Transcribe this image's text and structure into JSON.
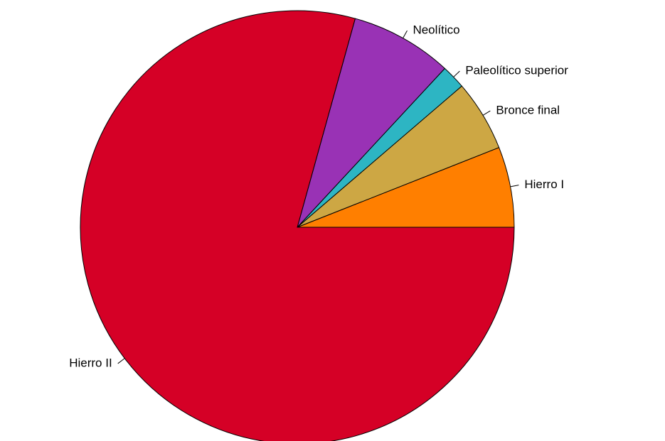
{
  "chart_data": {
    "type": "pie",
    "title": "",
    "start_angle_deg": 0,
    "direction": "counterclockwise",
    "slices": [
      {
        "label": "Hierro I",
        "value": 6.0,
        "color": "#FF7F00"
      },
      {
        "label": "Bronce final",
        "value": 5.3,
        "color": "#CDA744"
      },
      {
        "label": "Paleolítico superior",
        "value": 1.8,
        "color": "#2DB5C3"
      },
      {
        "label": "Neolítico",
        "value": 7.6,
        "color": "#9932B5"
      },
      {
        "label": "Hierro II",
        "value": 79.3,
        "color": "#D50026"
      }
    ]
  }
}
